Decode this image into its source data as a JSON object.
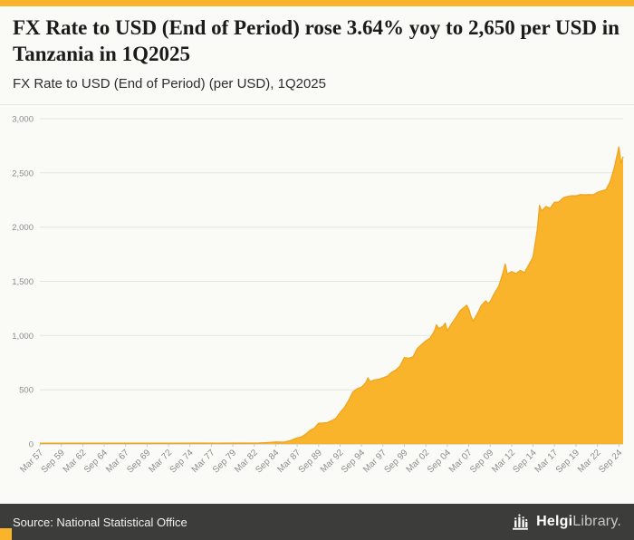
{
  "page": {
    "accent_color": "#f9b42c",
    "background_color": "#fafaf7",
    "footer_bg_color": "#3c3c3b"
  },
  "header": {
    "title": "FX Rate to USD (End of Period) rose 3.64% yoy to 2,650 per USD in Tanzania in 1Q2025",
    "subtitle": "FX Rate to USD (End of Period) (per USD), 1Q2025"
  },
  "chart_data": {
    "type": "area",
    "title": "FX Rate to USD (End of Period) (per USD), 1Q2025",
    "xlabel": "",
    "ylabel": "",
    "ylim": [
      0,
      3000
    ],
    "yticks": [
      0,
      500,
      1000,
      1500,
      2000,
      2500,
      3000
    ],
    "ytick_labels": [
      "0",
      "500",
      "1,000",
      "1,500",
      "2,000",
      "2,500",
      "3,000"
    ],
    "xlim": [
      1957.25,
      2025.25
    ],
    "xtick_interval_years": 2.5,
    "xtick_labels": [
      "Mar 57",
      "Sep 59",
      "Mar 62",
      "Sep 64",
      "Mar 67",
      "Sep 69",
      "Mar 72",
      "Sep 74",
      "Mar 77",
      "Sep 79",
      "Mar 82",
      "Sep 84",
      "Mar 87",
      "Sep 89",
      "Mar 92",
      "Sep 94",
      "Mar 97",
      "Sep 99",
      "Mar 02",
      "Sep 04",
      "Mar 07",
      "Sep 09",
      "Mar 12",
      "Sep 14",
      "Mar 17",
      "Sep 19",
      "Mar 22",
      "Sep 24"
    ],
    "grid": "horizontal",
    "legend": "none",
    "area_color": "#f9b42c",
    "line_color": "#f0a51e",
    "series": [
      {
        "name": "FX Rate to USD, End of Period (TZS per USD)",
        "points": [
          [
            1957.25,
            7
          ],
          [
            1961,
            7
          ],
          [
            1965,
            7.1
          ],
          [
            1966.75,
            7.1
          ],
          [
            1970,
            7.1
          ],
          [
            1973,
            7
          ],
          [
            1975.75,
            8.3
          ],
          [
            1978,
            7.7
          ],
          [
            1980,
            8.2
          ],
          [
            1981.75,
            8.3
          ],
          [
            1982.75,
            9.5
          ],
          [
            1983.75,
            12.5
          ],
          [
            1984.5,
            17
          ],
          [
            1984.75,
            18
          ],
          [
            1985.75,
            16.5
          ],
          [
            1986.5,
            32.7
          ],
          [
            1986.75,
            40
          ],
          [
            1987.25,
            55
          ],
          [
            1987.75,
            64
          ],
          [
            1988.25,
            90
          ],
          [
            1988.75,
            125
          ],
          [
            1989.25,
            145
          ],
          [
            1989.75,
            192
          ],
          [
            1990.25,
            193
          ],
          [
            1990.75,
            196
          ],
          [
            1991.25,
            215
          ],
          [
            1991.75,
            234
          ],
          [
            1992.25,
            290
          ],
          [
            1992.75,
            335
          ],
          [
            1993.25,
            400
          ],
          [
            1993.75,
            480
          ],
          [
            1994.25,
            510
          ],
          [
            1994.75,
            524
          ],
          [
            1995.25,
            565
          ],
          [
            1995.5,
            610
          ],
          [
            1995.75,
            575
          ],
          [
            1996.25,
            590
          ],
          [
            1996.75,
            596
          ],
          [
            1997.25,
            610
          ],
          [
            1997.75,
            625
          ],
          [
            1998.25,
            660
          ],
          [
            1998.75,
            681
          ],
          [
            1999.25,
            720
          ],
          [
            1999.75,
            797
          ],
          [
            2000.25,
            790
          ],
          [
            2000.75,
            803
          ],
          [
            2001.25,
            880
          ],
          [
            2001.75,
            916
          ],
          [
            2002.25,
            950
          ],
          [
            2002.75,
            976
          ],
          [
            2003.25,
            1040
          ],
          [
            2003.5,
            1100
          ],
          [
            2003.75,
            1064
          ],
          [
            2004.25,
            1085
          ],
          [
            2004.5,
            1115
          ],
          [
            2004.75,
            1043
          ],
          [
            2005.25,
            1110
          ],
          [
            2005.75,
            1165
          ],
          [
            2006.25,
            1230
          ],
          [
            2006.75,
            1262
          ],
          [
            2007,
            1280
          ],
          [
            2007.25,
            1245
          ],
          [
            2007.5,
            1180
          ],
          [
            2007.75,
            1132
          ],
          [
            2008.25,
            1200
          ],
          [
            2008.75,
            1280
          ],
          [
            2009.25,
            1320
          ],
          [
            2009.5,
            1295
          ],
          [
            2009.75,
            1313
          ],
          [
            2010.25,
            1390
          ],
          [
            2010.75,
            1454
          ],
          [
            2011.25,
            1580
          ],
          [
            2011.5,
            1660
          ],
          [
            2011.75,
            1567
          ],
          [
            2012.25,
            1590
          ],
          [
            2012.75,
            1571
          ],
          [
            2013.25,
            1600
          ],
          [
            2013.75,
            1579
          ],
          [
            2014.25,
            1650
          ],
          [
            2014.75,
            1725
          ],
          [
            2015.25,
            1980
          ],
          [
            2015.5,
            2200
          ],
          [
            2015.75,
            2148
          ],
          [
            2016.25,
            2190
          ],
          [
            2016.75,
            2173
          ],
          [
            2017.25,
            2230
          ],
          [
            2017.75,
            2230
          ],
          [
            2018.25,
            2270
          ],
          [
            2018.75,
            2281
          ],
          [
            2019.25,
            2290
          ],
          [
            2019.75,
            2288
          ],
          [
            2020.25,
            2300
          ],
          [
            2020.75,
            2298
          ],
          [
            2021.25,
            2300
          ],
          [
            2021.75,
            2298
          ],
          [
            2022.25,
            2320
          ],
          [
            2022.75,
            2333
          ],
          [
            2023.25,
            2345
          ],
          [
            2023.75,
            2420
          ],
          [
            2024.25,
            2557
          ],
          [
            2024.75,
            2740
          ],
          [
            2025,
            2590
          ],
          [
            2025.25,
            2650
          ]
        ]
      }
    ]
  },
  "footer": {
    "source": "Source: National Statistical Office",
    "logo": {
      "name_bold": "Helgi",
      "name_light": "Library",
      "suffix": "."
    }
  }
}
